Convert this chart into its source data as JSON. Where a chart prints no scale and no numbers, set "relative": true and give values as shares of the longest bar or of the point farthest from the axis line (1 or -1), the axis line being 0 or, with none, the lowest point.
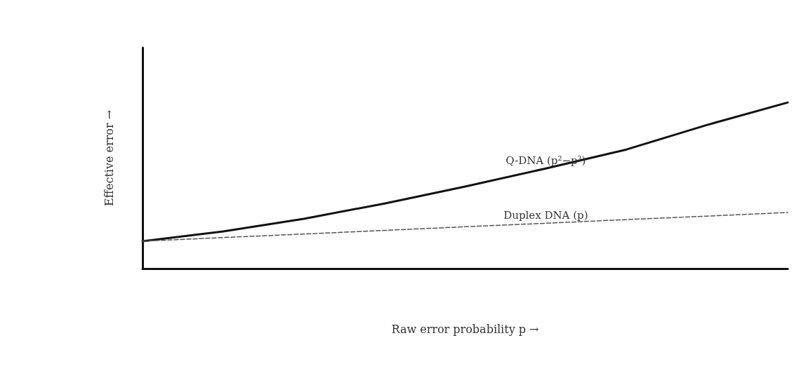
{
  "chart_data": {
    "type": "line",
    "relative": true,
    "xlabel": "Raw error probability p →",
    "ylabel": "Effective error →",
    "categories": [
      null,
      null,
      null,
      null,
      null,
      null,
      null,
      null,
      null
    ],
    "series": [
      {
        "name": "Q-DNA (p²−p³)",
        "color": "#111111",
        "line_style": "solid",
        "values": [
          0.165,
          0.224,
          0.3,
          0.392,
          0.494,
          0.603,
          0.717,
          0.865,
          1
        ]
      },
      {
        "name": "Duplex DNA (p)",
        "color": "#555555",
        "line_style": "dashed",
        "values": [
          0.165,
          0.187,
          0.208,
          0.23,
          0.252,
          0.273,
          0.295,
          0.316,
          0.338
        ]
      }
    ],
    "legend": false,
    "grid": false,
    "marker": "none"
  }
}
